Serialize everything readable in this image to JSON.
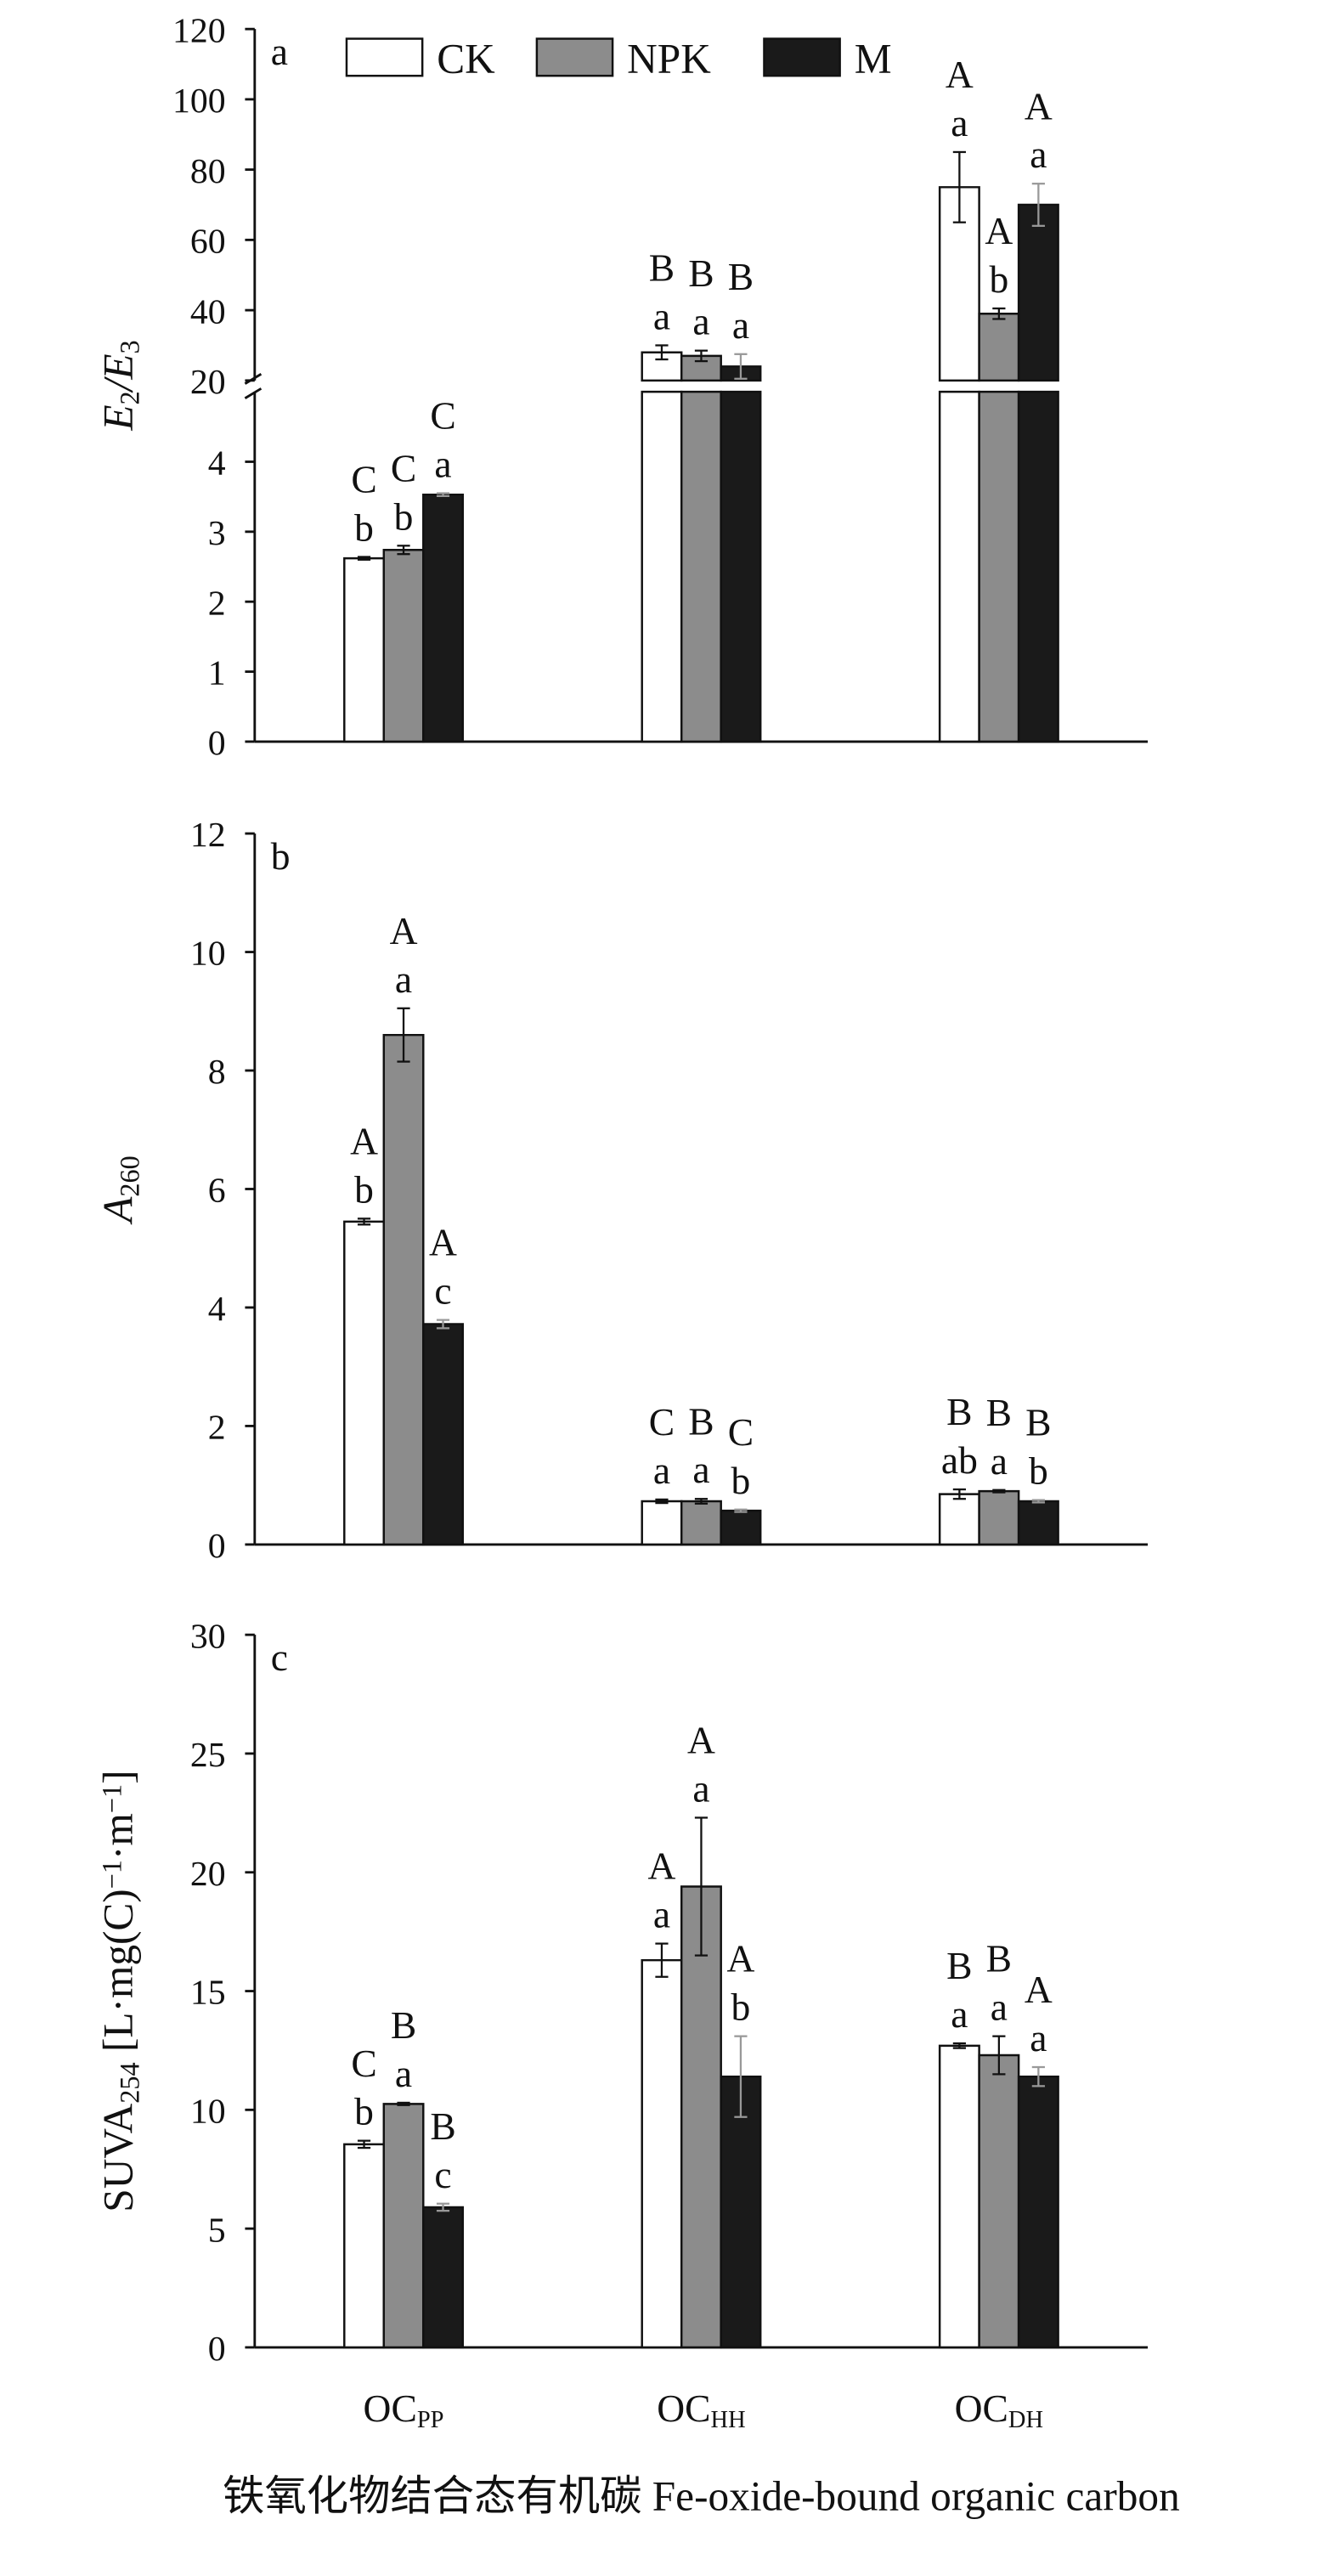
{
  "chart_data": [
    {
      "type": "bar",
      "panel_label": "a",
      "ylabel": [
        {
          "text": "E",
          "style": "italic"
        },
        {
          "text": "2",
          "shift": "sub"
        },
        {
          "text": "/",
          "style": "italic"
        },
        {
          "text": "E",
          "style": "italic"
        },
        {
          "text": "3",
          "shift": "sub"
        }
      ],
      "ylim": [
        0,
        5
      ],
      "yticks": [
        0,
        1,
        2,
        3,
        4
      ],
      "ylim_upper": [
        20,
        120
      ],
      "yticks_upper": [
        20,
        40,
        60,
        80,
        100,
        120
      ],
      "axis_break": true,
      "legend": true,
      "legend_position": "top",
      "series": [
        {
          "name": "CK",
          "color": "#ffffff",
          "values": [
            2.62,
            28,
            75
          ],
          "errors": [
            0.02,
            2,
            10
          ],
          "group_letters": [
            "C",
            "B",
            "A"
          ],
          "letters": [
            "b",
            "a",
            "a"
          ]
        },
        {
          "name": "NPK",
          "color": "#8c8c8c",
          "values": [
            2.74,
            27,
            39
          ],
          "errors": [
            0.06,
            1.5,
            1.5
          ],
          "group_letters": [
            "C",
            "B",
            "A"
          ],
          "letters": [
            "b",
            "a",
            "b"
          ]
        },
        {
          "name": "M",
          "color": "#1a1a1a",
          "values": [
            3.53,
            24,
            70
          ],
          "errors": [
            0.02,
            3.5,
            6
          ],
          "group_letters": [
            "C",
            "B",
            "A"
          ],
          "letters": [
            "a",
            "a",
            "a"
          ]
        }
      ]
    },
    {
      "type": "bar",
      "panel_label": "b",
      "ylabel": [
        {
          "text": "A",
          "style": "italic"
        },
        {
          "text": "260",
          "shift": "sub"
        }
      ],
      "ylim": [
        0,
        12
      ],
      "yticks": [
        0,
        2,
        4,
        6,
        8,
        10,
        12
      ],
      "series": [
        {
          "name": "CK",
          "color": "#ffffff",
          "values": [
            5.45,
            0.73,
            0.85
          ],
          "errors": [
            0.05,
            0.03,
            0.08
          ],
          "group_letters": [
            "A",
            "C",
            "B"
          ],
          "letters": [
            "b",
            "a",
            "ab"
          ]
        },
        {
          "name": "NPK",
          "color": "#8c8c8c",
          "values": [
            8.6,
            0.73,
            0.9
          ],
          "errors": [
            0.45,
            0.04,
            0.02
          ],
          "group_letters": [
            "A",
            "B",
            "B"
          ],
          "letters": [
            "a",
            "a",
            "a"
          ]
        },
        {
          "name": "M",
          "color": "#1a1a1a",
          "values": [
            3.72,
            0.57,
            0.73
          ],
          "errors": [
            0.07,
            0.02,
            0.02
          ],
          "group_letters": [
            "A",
            "C",
            "B"
          ],
          "letters": [
            "c",
            "b",
            "b"
          ]
        }
      ]
    },
    {
      "type": "bar",
      "panel_label": "c",
      "ylabel": [
        {
          "text": "SUVA"
        },
        {
          "text": "254",
          "shift": "sub"
        },
        {
          "text": " [L·mg(C)"
        },
        {
          "text": "−1",
          "shift": "super"
        },
        {
          "text": "·m"
        },
        {
          "text": "−1",
          "shift": "super"
        },
        {
          "text": "]"
        }
      ],
      "ylim": [
        0,
        30
      ],
      "yticks": [
        0,
        5,
        10,
        15,
        20,
        25,
        30
      ],
      "categories": [
        [
          "OC",
          "PP"
        ],
        [
          "OC",
          "HH"
        ],
        [
          "OC",
          "DH"
        ]
      ],
      "xlabel": "铁氧化物结合态有机碳 Fe-oxide-bound organic carbon",
      "series": [
        {
          "name": "CK",
          "color": "#ffffff",
          "values": [
            8.55,
            16.3,
            12.7
          ],
          "errors": [
            0.15,
            0.7,
            0.1
          ],
          "group_letters": [
            "C",
            "A",
            "B"
          ],
          "letters": [
            "b",
            "a",
            "a"
          ]
        },
        {
          "name": "NPK",
          "color": "#8c8c8c",
          "values": [
            10.25,
            19.4,
            12.3
          ],
          "errors": [
            0.05,
            2.9,
            0.8
          ],
          "group_letters": [
            "B",
            "A",
            "B"
          ],
          "letters": [
            "a",
            "a",
            "a"
          ]
        },
        {
          "name": "M",
          "color": "#1a1a1a",
          "values": [
            5.9,
            11.4,
            11.4
          ],
          "errors": [
            0.15,
            1.7,
            0.4
          ],
          "group_letters": [
            "B",
            "A",
            "A"
          ],
          "letters": [
            "c",
            "b",
            "a"
          ]
        }
      ]
    }
  ]
}
